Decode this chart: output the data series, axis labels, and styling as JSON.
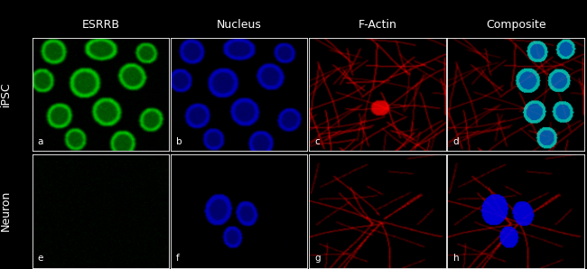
{
  "col_titles": [
    "ESRRB",
    "Nucleus",
    "F-Actin",
    "Composite"
  ],
  "row_labels": [
    "iPSC",
    "Neuron"
  ],
  "cell_labels": [
    "a",
    "b",
    "c",
    "d",
    "e",
    "f",
    "g",
    "h"
  ],
  "figure_bg": "#000000",
  "col_title_color": "#ffffff",
  "row_label_color": "#ffffff",
  "cell_label_color": "#ffffff",
  "border_color": "#ffffff",
  "figsize": [
    6.5,
    2.98
  ],
  "dpi": 100,
  "nrows": 2,
  "ncols": 4
}
